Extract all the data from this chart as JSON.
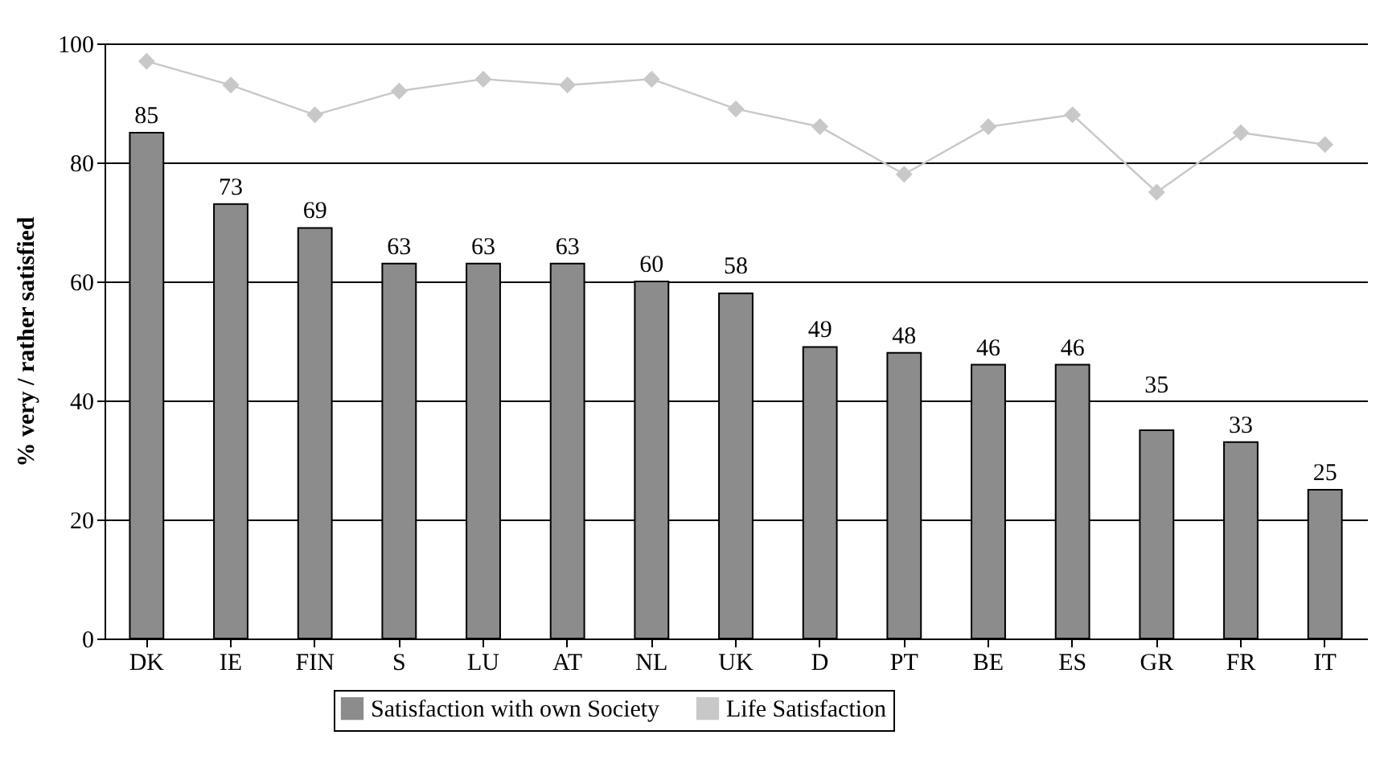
{
  "chart_data": {
    "type": "bar",
    "ylabel": "% very / rather satisfied",
    "categories": [
      "DK",
      "IE",
      "FIN",
      "S",
      "LU",
      "AT",
      "NL",
      "UK",
      "D",
      "PT",
      "BE",
      "ES",
      "GR",
      "FR",
      "IT"
    ],
    "series": [
      {
        "name": "Satisfaction with own Society",
        "color": "#8c8c8c",
        "values": [
          85,
          73,
          69,
          63,
          63,
          63,
          60,
          58,
          49,
          48,
          46,
          46,
          35,
          33,
          25
        ],
        "value_labels": [
          "85",
          "73",
          "69",
          "63",
          "63",
          "63",
          "60",
          "58",
          "49",
          "48",
          "46",
          "46",
          "35",
          "33",
          "25"
        ]
      },
      {
        "name": "Life Satisfaction",
        "type": "line",
        "color": "#c8c8c8",
        "marker": "diamond",
        "values": [
          97,
          93,
          88,
          92,
          94,
          93,
          94,
          89,
          86,
          78,
          86,
          88,
          75,
          85,
          83
        ]
      }
    ],
    "ylim": [
      0,
      100
    ],
    "yticks": [
      0,
      20,
      40,
      60,
      80,
      100
    ],
    "grid": "y",
    "legend": "bottom"
  }
}
